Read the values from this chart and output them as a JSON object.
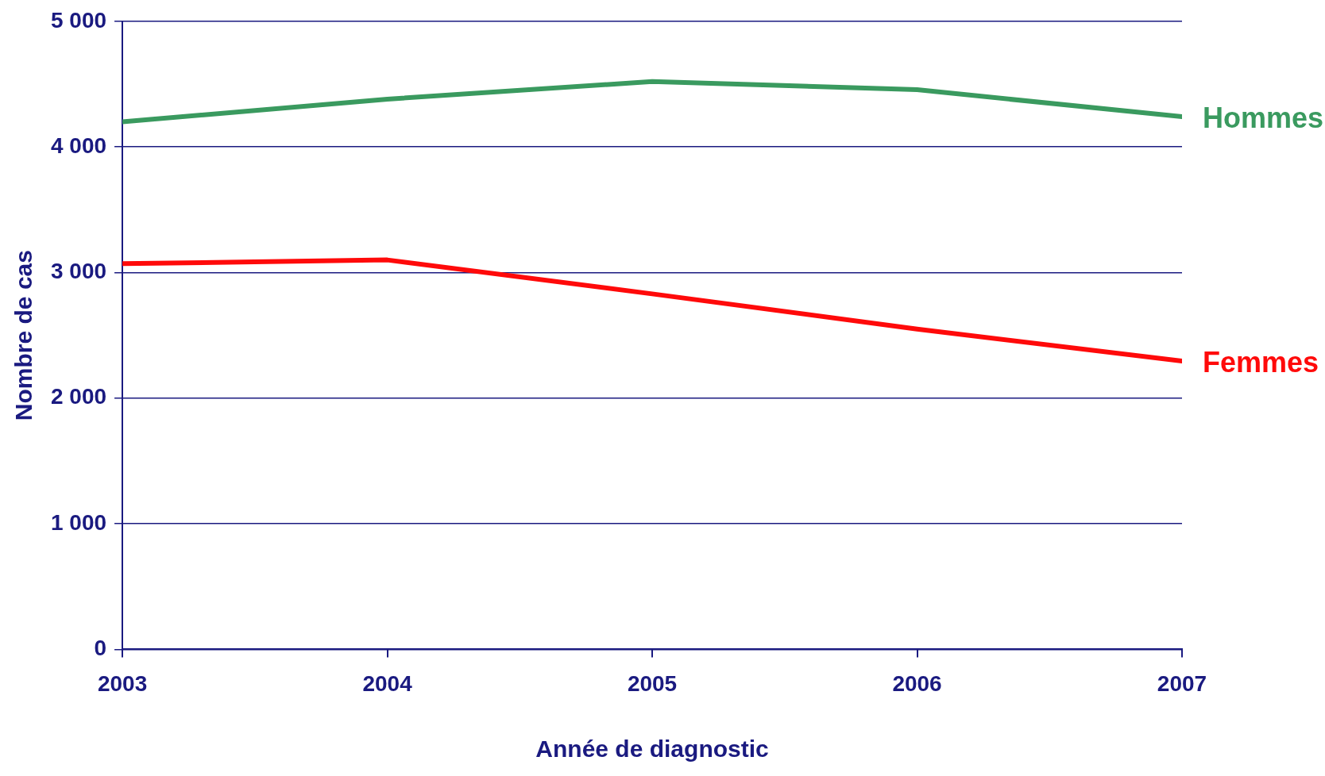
{
  "chart_data": {
    "type": "line",
    "xlabel": "Année de diagnostic",
    "ylabel": "Nombre de cas",
    "x": [
      2003,
      2004,
      2005,
      2006,
      2007
    ],
    "series": [
      {
        "name": "Hommes",
        "color": "#3a9a5f",
        "values": [
          4200,
          4380,
          4520,
          4455,
          4240
        ]
      },
      {
        "name": "Femmes",
        "color": "#ff0a0a",
        "values": [
          3070,
          3100,
          2830,
          2550,
          2295
        ]
      }
    ],
    "xlim": [
      2003,
      2007
    ],
    "xticks": [
      2003,
      2004,
      2005,
      2006,
      2007
    ],
    "ylim": [
      0,
      5000
    ],
    "yticks": [
      0,
      {
        "value": 1000,
        "label": "1 000"
      },
      {
        "value": 2000,
        "label": "2 000"
      },
      {
        "value": 3000,
        "label": "3 000"
      },
      {
        "value": 4000,
        "label": "4 000"
      },
      {
        "value": 5000,
        "label": "5 000"
      }
    ],
    "grid": "y",
    "legend": false,
    "marker": "none",
    "line_style": "solid"
  }
}
